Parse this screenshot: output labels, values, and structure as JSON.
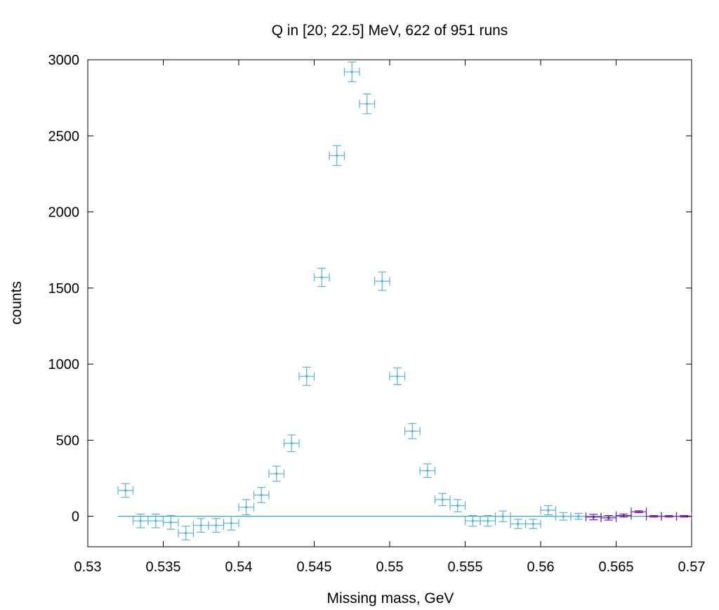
{
  "chart_data": {
    "type": "scatter",
    "title": "Q in [20; 22.5] MeV, 622 of 951 runs",
    "xlabel": "Missing mass, GeV",
    "ylabel": "counts",
    "xlim": [
      0.53,
      0.57
    ],
    "ylim": [
      -200,
      3000
    ],
    "xticks": [
      "0.53",
      "0.535",
      "0.54",
      "0.545",
      "0.55",
      "0.555",
      "0.56",
      "0.565",
      "0.57"
    ],
    "yticks": [
      "0",
      "500",
      "1000",
      "1500",
      "2000",
      "2500",
      "3000"
    ],
    "baseline": {
      "from": 0.532,
      "to": 0.57,
      "value": 0,
      "color": "#1f9fb8"
    },
    "grid": false,
    "series": [
      {
        "color": "#5ab4dc",
        "x_half_width": 0.0005,
        "points": [
          {
            "x": 0.5325,
            "y": 170,
            "err": 45
          },
          {
            "x": 0.5335,
            "y": -30,
            "err": 45
          },
          {
            "x": 0.5345,
            "y": -30,
            "err": 45
          },
          {
            "x": 0.5355,
            "y": -40,
            "err": 45
          },
          {
            "x": 0.5365,
            "y": -110,
            "err": 45
          },
          {
            "x": 0.5375,
            "y": -60,
            "err": 45
          },
          {
            "x": 0.5385,
            "y": -60,
            "err": 45
          },
          {
            "x": 0.5395,
            "y": -45,
            "err": 45
          },
          {
            "x": 0.5405,
            "y": 60,
            "err": 50
          },
          {
            "x": 0.5415,
            "y": 140,
            "err": 50
          },
          {
            "x": 0.5425,
            "y": 280,
            "err": 50
          },
          {
            "x": 0.5435,
            "y": 480,
            "err": 55
          },
          {
            "x": 0.5445,
            "y": 920,
            "err": 60
          },
          {
            "x": 0.5455,
            "y": 1570,
            "err": 60
          },
          {
            "x": 0.5465,
            "y": 2370,
            "err": 65
          },
          {
            "x": 0.5475,
            "y": 2920,
            "err": 65
          },
          {
            "x": 0.5485,
            "y": 2710,
            "err": 65
          },
          {
            "x": 0.5495,
            "y": 1545,
            "err": 60
          },
          {
            "x": 0.5505,
            "y": 920,
            "err": 55
          },
          {
            "x": 0.5515,
            "y": 560,
            "err": 50
          },
          {
            "x": 0.5525,
            "y": 300,
            "err": 45
          },
          {
            "x": 0.5535,
            "y": 110,
            "err": 40
          },
          {
            "x": 0.5545,
            "y": 70,
            "err": 40
          },
          {
            "x": 0.5555,
            "y": -30,
            "err": 35
          },
          {
            "x": 0.5565,
            "y": -30,
            "err": 35
          },
          {
            "x": 0.5575,
            "y": 0,
            "err": 35
          },
          {
            "x": 0.5585,
            "y": -50,
            "err": 30
          },
          {
            "x": 0.5595,
            "y": -50,
            "err": 30
          },
          {
            "x": 0.5605,
            "y": 40,
            "err": 30
          },
          {
            "x": 0.5615,
            "y": 0,
            "err": 25
          },
          {
            "x": 0.5625,
            "y": 0,
            "err": 20
          }
        ]
      },
      {
        "color": "#7a1fa8",
        "x_half_width": 0.0005,
        "points": [
          {
            "x": 0.5635,
            "y": -5,
            "err": 18
          },
          {
            "x": 0.5645,
            "y": -10,
            "err": 15
          },
          {
            "x": 0.5655,
            "y": 5,
            "err": 10
          },
          {
            "x": 0.5665,
            "y": 30,
            "err": 6
          },
          {
            "x": 0.5675,
            "y": 0,
            "err": 5
          },
          {
            "x": 0.5685,
            "y": 0,
            "err": 5
          },
          {
            "x": 0.5695,
            "y": 0,
            "err": 5
          }
        ]
      }
    ]
  }
}
